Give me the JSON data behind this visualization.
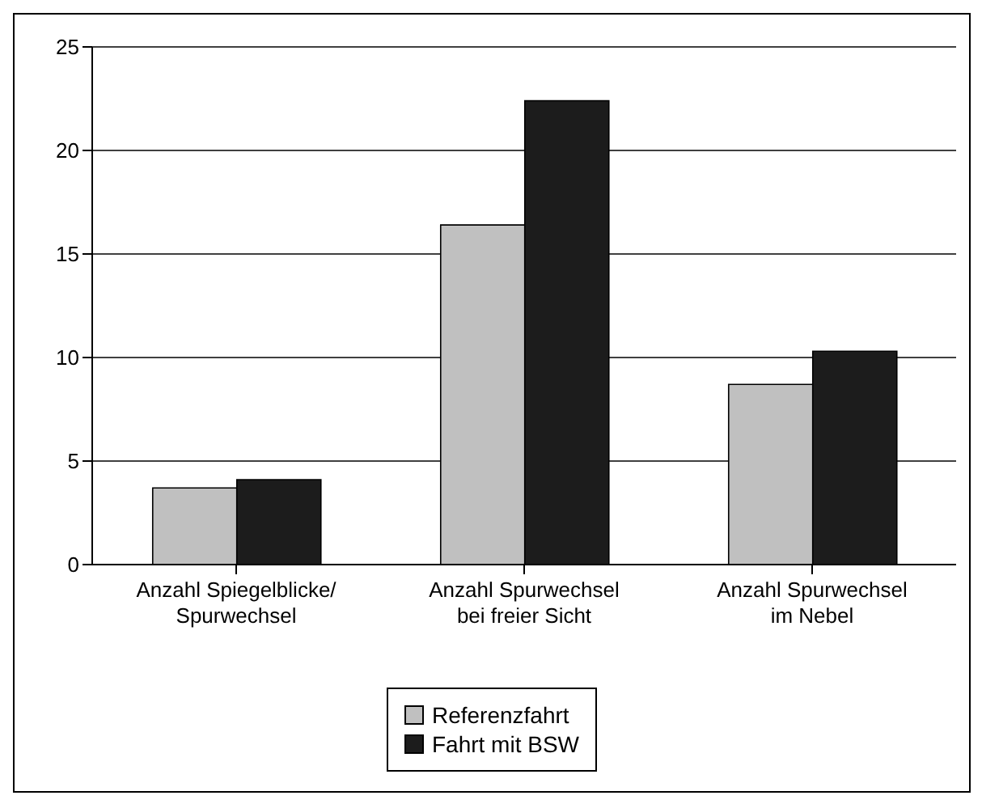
{
  "chart_data": {
    "type": "bar",
    "categories": [
      "Anzahl Spiegelblicke/\nSpurwechsel",
      "Anzahl Spurwechsel\nbei freier Sicht",
      "Anzahl Spurwechsel\nim Nebel"
    ],
    "series": [
      {
        "name": "Referenzfahrt",
        "color": "#c0c0c0",
        "values": [
          3.7,
          16.4,
          8.7
        ]
      },
      {
        "name": "Fahrt mit BSW",
        "color": "#1c1c1c",
        "values": [
          4.1,
          22.4,
          10.3
        ]
      }
    ],
    "ylim": [
      0,
      25
    ],
    "yticks": [
      0,
      5,
      10,
      15,
      20,
      25
    ],
    "grid": "y",
    "legend": "bottom"
  }
}
